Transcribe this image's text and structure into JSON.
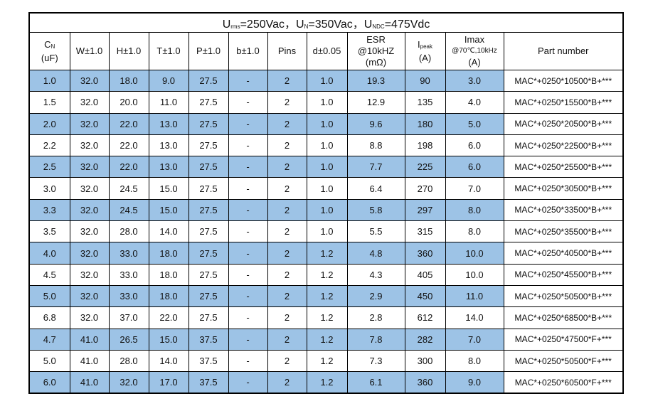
{
  "title": [
    {
      "symbol": "U",
      "subscript": "rms",
      "value": "=250Vac，"
    },
    {
      "symbol": "U",
      "subscript": "N",
      "value": "=350Vac，"
    },
    {
      "symbol": "U",
      "subscript": "NDC",
      "value": "=475Vdc"
    }
  ],
  "header": [
    {
      "symbol": "C",
      "subscript": "N",
      "unit": "(uF)"
    },
    {
      "label": "W±1.0"
    },
    {
      "label": "H±1.0"
    },
    {
      "label": "T±1.0"
    },
    {
      "label": "P±1.0"
    },
    {
      "label": "b±1.0"
    },
    {
      "label": "Pins"
    },
    {
      "label": "d±0.05"
    },
    {
      "label": "ESR",
      "condition": "@10kHZ",
      "unit": "(mΩ)"
    },
    {
      "symbol": "I",
      "subscript": "peak",
      "unit": "(A)"
    },
    {
      "label": "Imax",
      "condition": "@70℃,10kHz",
      "unit": "(A)"
    },
    {
      "label": "Part number"
    }
  ],
  "rows": [
    [
      "1.0",
      "32.0",
      "18.0",
      "9.0",
      "27.5",
      "-",
      "2",
      "1.0",
      "19.3",
      "90",
      "3.0",
      "MAC*+0250*10500*B+***"
    ],
    [
      "1.5",
      "32.0",
      "20.0",
      "11.0",
      "27.5",
      "-",
      "2",
      "1.0",
      "12.9",
      "135",
      "4.0",
      "MAC*+0250*15500*B+***"
    ],
    [
      "2.0",
      "32.0",
      "22.0",
      "13.0",
      "27.5",
      "-",
      "2",
      "1.0",
      "9.6",
      "180",
      "5.0",
      "MAC*+0250*20500*B+***"
    ],
    [
      "2.2",
      "32.0",
      "22.0",
      "13.0",
      "27.5",
      "-",
      "2",
      "1.0",
      "8.8",
      "198",
      "6.0",
      "MAC*+0250*22500*B+***"
    ],
    [
      "2.5",
      "32.0",
      "22.0",
      "13.0",
      "27.5",
      "-",
      "2",
      "1.0",
      "7.7",
      "225",
      "6.0",
      "MAC*+0250*25500*B+***"
    ],
    [
      "3.0",
      "32.0",
      "24.5",
      "15.0",
      "27.5",
      "-",
      "2",
      "1.0",
      "6.4",
      "270",
      "7.0",
      "MAC*+0250*30500*B+***"
    ],
    [
      "3.3",
      "32.0",
      "24.5",
      "15.0",
      "27.5",
      "-",
      "2",
      "1.0",
      "5.8",
      "297",
      "8.0",
      "MAC*+0250*33500*B+***"
    ],
    [
      "3.5",
      "32.0",
      "28.0",
      "14.0",
      "27.5",
      "-",
      "2",
      "1.0",
      "5.5",
      "315",
      "8.0",
      "MAC*+0250*35500*B+***"
    ],
    [
      "4.0",
      "32.0",
      "33.0",
      "18.0",
      "27.5",
      "-",
      "2",
      "1.2",
      "4.8",
      "360",
      "10.0",
      "MAC*+0250*40500*B+***"
    ],
    [
      "4.5",
      "32.0",
      "33.0",
      "18.0",
      "27.5",
      "-",
      "2",
      "1.2",
      "4.3",
      "405",
      "10.0",
      "MAC*+0250*45500*B+***"
    ],
    [
      "5.0",
      "32.0",
      "33.0",
      "18.0",
      "27.5",
      "-",
      "2",
      "1.2",
      "2.9",
      "450",
      "11.0",
      "MAC*+0250*50500*B+***"
    ],
    [
      "6.8",
      "32.0",
      "37.0",
      "22.0",
      "27.5",
      "-",
      "2",
      "1.2",
      "2.8",
      "612",
      "14.0",
      "MAC*+0250*68500*B+***"
    ],
    [
      "4.7",
      "41.0",
      "26.5",
      "15.0",
      "37.5",
      "-",
      "2",
      "1.2",
      "7.8",
      "282",
      "7.0",
      "MAC*+0250*47500*F+***"
    ],
    [
      "5.0",
      "41.0",
      "28.0",
      "14.0",
      "37.5",
      "-",
      "2",
      "1.2",
      "7.3",
      "300",
      "8.0",
      "MAC*+0250*50500*F+***"
    ],
    [
      "6.0",
      "41.0",
      "32.0",
      "17.0",
      "37.5",
      "-",
      "2",
      "1.2",
      "6.1",
      "360",
      "9.0",
      "MAC*+0250*60500*F+***"
    ]
  ]
}
